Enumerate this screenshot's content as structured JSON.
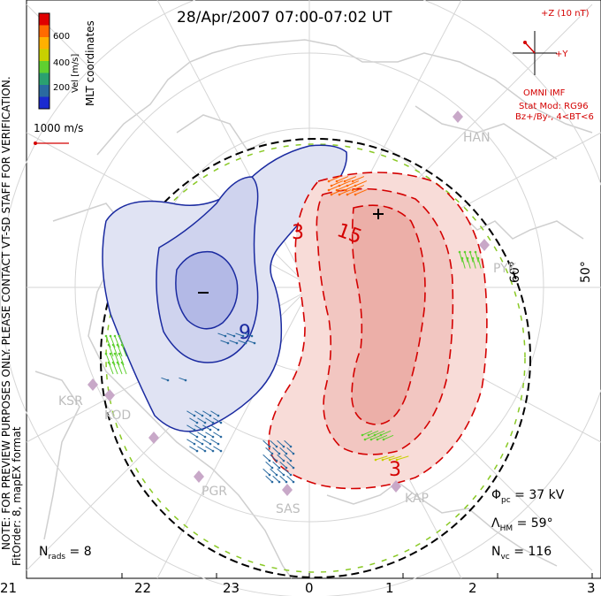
{
  "title": "28/Apr/2007 07:00-07:02 UT",
  "colorbar": {
    "label": "Vel [m/s]",
    "coords_label": "MLT coordinates",
    "ticks": [
      "600",
      "400",
      "200"
    ],
    "colors": [
      "#e00000",
      "#ff6a00",
      "#ffb000",
      "#c8d000",
      "#5fd030",
      "#2aa070",
      "#2a6aa0",
      "#1a2ad0"
    ]
  },
  "scale_label": "1000 m/s",
  "imf": {
    "z_label": "+Z (10 nT)",
    "y_label": "+Y",
    "source": "OMNI IMF",
    "model": "Stat Mod: RG96",
    "condition": "Bz+/By-, 4<BT<6"
  },
  "disclaimer": "NOTE: FOR PREVIEW PURPOSES ONLY. PLEASE CONTACT VT-SD STAFF FOR VERIFICATION.",
  "fit_order": "FitOrder: 8, mapEX format",
  "stats": {
    "phi_pc": "Φ",
    "phi_sub": "pc",
    "phi_val": " = 37 kV",
    "lambda": "Λ",
    "lambda_sub": "HM",
    "lambda_val": " = 59°",
    "nvc": "N",
    "nvc_sub": "vc",
    "nvc_val": " = 116",
    "nrads": "N",
    "nrads_sub": "rads",
    "nrads_val": " = 8"
  },
  "mlt_ticks": [
    "21",
    "22",
    "23",
    "0",
    "1",
    "2",
    "3"
  ],
  "lat_labels": [
    "60°",
    "50°"
  ],
  "sites": [
    "HAN",
    "PYK",
    "KSR",
    "KOD",
    "PGR",
    "SAS",
    "KAP"
  ],
  "chart_data": {
    "type": "contour",
    "title": "28/Apr/2007 07:00-07:02 UT",
    "potential_contours_kV": [
      -15,
      -9,
      -3,
      3,
      9,
      15
    ],
    "contour_labels_shown": [
      "-9",
      "3",
      "15"
    ],
    "min_marker": "−",
    "max_marker": "+",
    "cross_polar_cap_potential_kV": 37,
    "heppner_maynard_boundary_deg": 59,
    "n_vectors": 116,
    "n_radars": 8,
    "vel_range_m_s": [
      0,
      700
    ]
  }
}
